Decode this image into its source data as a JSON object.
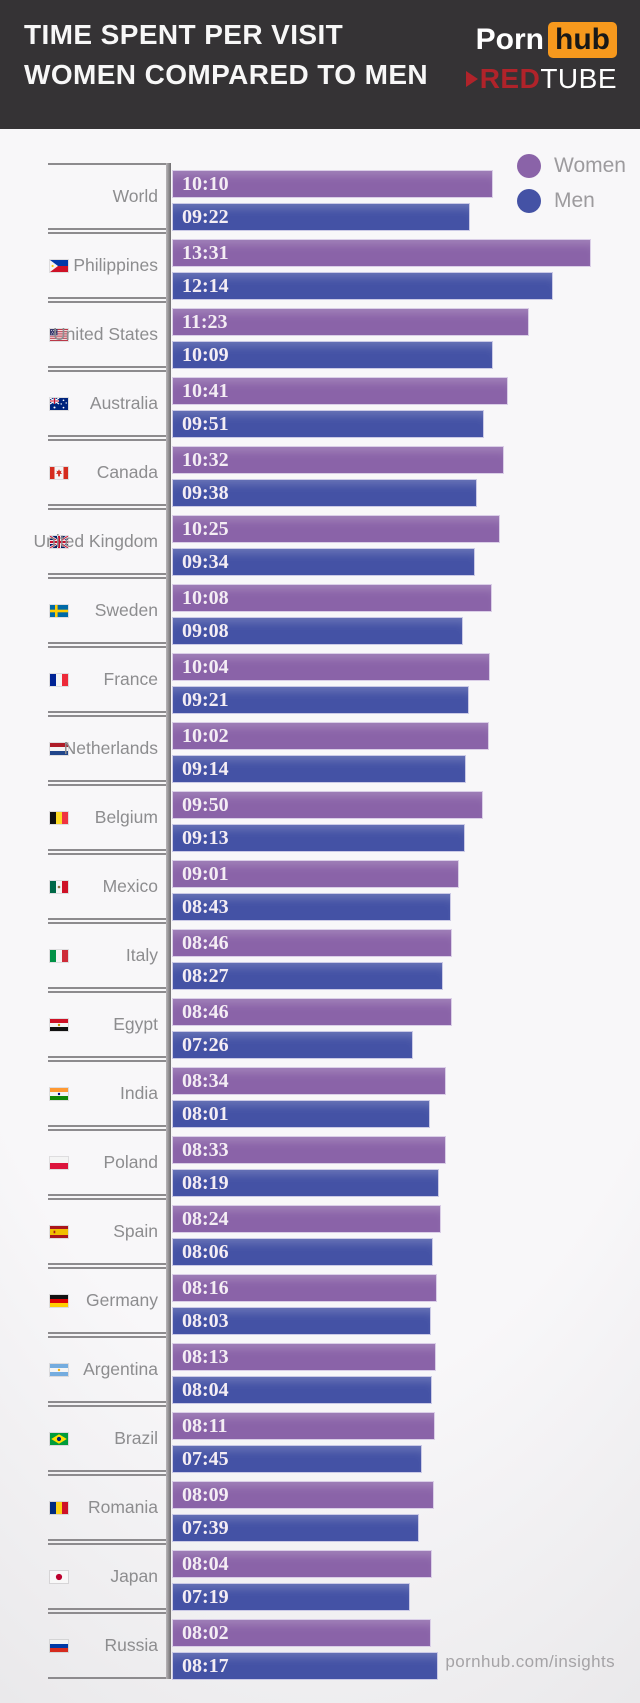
{
  "header": {
    "title_line1": "TIME SPENT PER VISIT",
    "title_line2": "WOMEN COMPARED TO MEN",
    "pornhub_logo": {
      "part1": "Porn",
      "part2": "hub"
    },
    "redtube_logo": {
      "part1": "RED",
      "part2": "TUBE"
    }
  },
  "legend": {
    "women_label": "Women",
    "men_label": "Men",
    "women_color": "#8a63a8",
    "men_color": "#4452a5"
  },
  "footer": {
    "credit": "pornhub.com/insights"
  },
  "chart_data": {
    "type": "bar",
    "orientation": "horizontal",
    "title": "Time Spent Per Visit - Women Compared to Men",
    "unit": "mm:ss per visit",
    "legend_position": "top-right",
    "value_labels_on_bars": true,
    "colors": {
      "women": "#8a63a8",
      "men": "#4452a5"
    },
    "categories": [
      "World",
      "Philippines",
      "United States",
      "Australia",
      "Canada",
      "United Kingdom",
      "Sweden",
      "France",
      "Netherlands",
      "Belgium",
      "Mexico",
      "Italy",
      "Egypt",
      "India",
      "Poland",
      "Spain",
      "Germany",
      "Argentina",
      "Brazil",
      "Romania",
      "Japan",
      "Russia"
    ],
    "flags": [
      null,
      "flag-philippines",
      "flag-united-states",
      "flag-australia",
      "flag-canada",
      "flag-united-kingdom",
      "flag-sweden",
      "flag-france",
      "flag-netherlands",
      "flag-belgium",
      "flag-mexico",
      "flag-italy",
      "flag-egypt",
      "flag-india",
      "flag-poland",
      "flag-spain",
      "flag-germany",
      "flag-argentina",
      "flag-brazil",
      "flag-romania",
      "flag-japan",
      "flag-russia"
    ],
    "series": [
      {
        "name": "Women",
        "values": [
          "10:10",
          "13:31",
          "11:23",
          "10:41",
          "10:32",
          "10:25",
          "10:08",
          "10:04",
          "10:02",
          "09:50",
          "09:01",
          "08:46",
          "08:46",
          "08:34",
          "08:33",
          "08:24",
          "08:16",
          "08:13",
          "08:11",
          "08:09",
          "08:04",
          "08:02"
        ]
      },
      {
        "name": "Men",
        "values": [
          "09:22",
          "12:14",
          "10:09",
          "09:51",
          "09:38",
          "09:34",
          "09:08",
          "09:21",
          "09:14",
          "09:13",
          "08:43",
          "08:27",
          "07:26",
          "08:01",
          "08:19",
          "08:06",
          "08:03",
          "08:04",
          "07:45",
          "07:39",
          "07:19",
          "08:17"
        ]
      }
    ]
  }
}
